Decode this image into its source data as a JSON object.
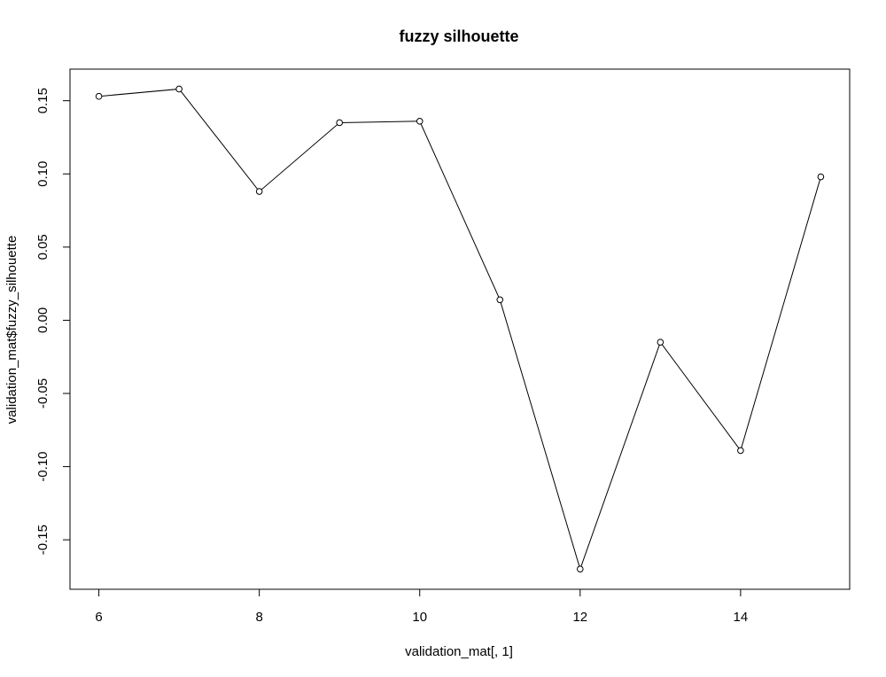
{
  "chart_data": {
    "type": "line",
    "title": "fuzzy silhouette",
    "xlabel": "validation_mat[, 1]",
    "ylabel": "validation_mat$fuzzy_silhouette",
    "x": [
      6,
      7,
      8,
      9,
      10,
      11,
      12,
      13,
      14,
      15
    ],
    "series": [
      {
        "values": [
          0.153,
          0.158,
          0.088,
          0.135,
          0.136,
          0.014,
          -0.17,
          -0.015,
          -0.089,
          0.098
        ]
      }
    ],
    "xticks": [
      "6",
      "8",
      "10",
      "12",
      "14"
    ],
    "yticks": [
      "-0.15",
      "-0.10",
      "-0.05",
      "0.00",
      "0.05",
      "0.10",
      "0.15"
    ],
    "xlim": [
      5.64,
      15.36
    ],
    "ylim": [
      -0.1838,
      0.1716
    ],
    "grid": false,
    "legend": "none",
    "line_color": "#000000",
    "marker": "open-circle"
  }
}
